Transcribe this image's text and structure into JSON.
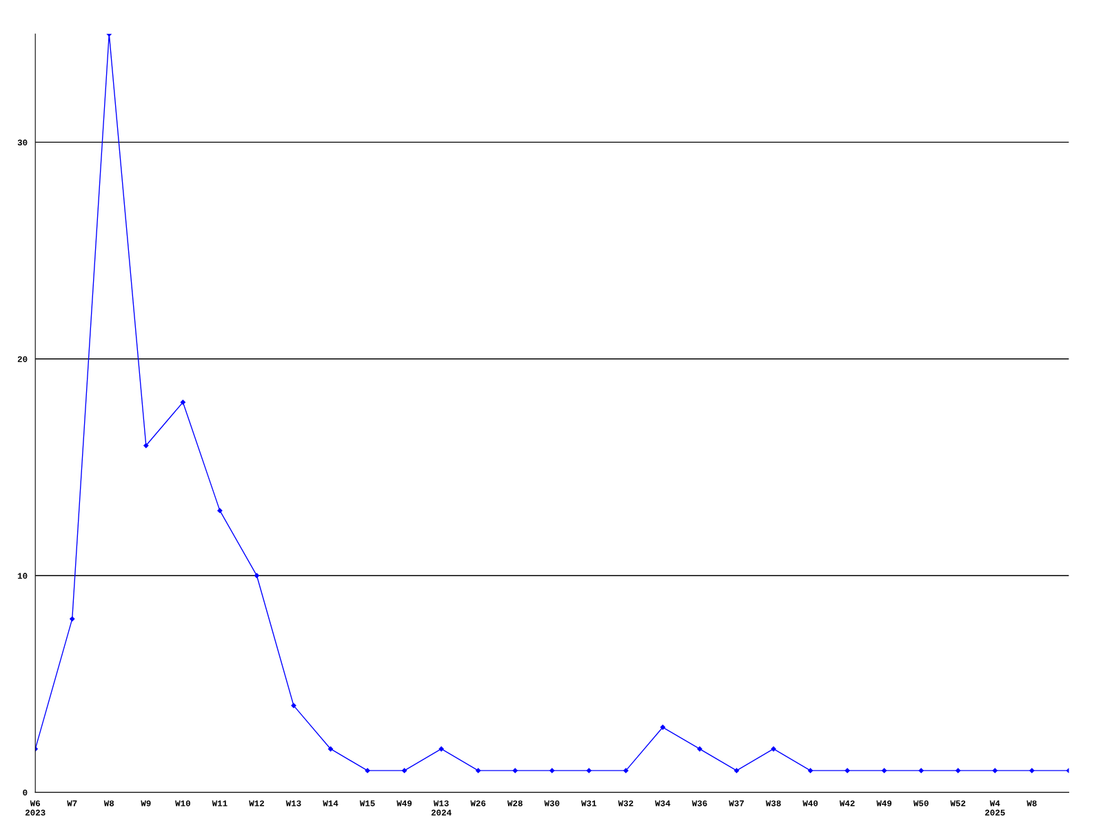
{
  "chart_data": {
    "type": "line",
    "categories": [
      "W6\n2023",
      "W7",
      "W8",
      "W9",
      "W10",
      "W11",
      "W12",
      "W13",
      "W14",
      "W15",
      "W49",
      "W13\n2024",
      "W26",
      "W28",
      "W30",
      "W31",
      "W32",
      "W34",
      "W36",
      "W37",
      "W38",
      "W40",
      "W42",
      "W49",
      "W50",
      "W52",
      "W4\n2025",
      "W8",
      null
    ],
    "series": [
      {
        "color": "#0000ff",
        "values": [
          2,
          8,
          35,
          16,
          18,
          13,
          10,
          4,
          2,
          1,
          1,
          2,
          1,
          1,
          1,
          1,
          1,
          3,
          2,
          1,
          2,
          1,
          1,
          1,
          1,
          1,
          1,
          1,
          1
        ]
      }
    ],
    "ylim": [
      0,
      35
    ],
    "yticks": [
      0,
      10,
      20,
      30
    ],
    "grid": "y",
    "marker": "diamond",
    "line_style": "solid",
    "legend": false
  }
}
